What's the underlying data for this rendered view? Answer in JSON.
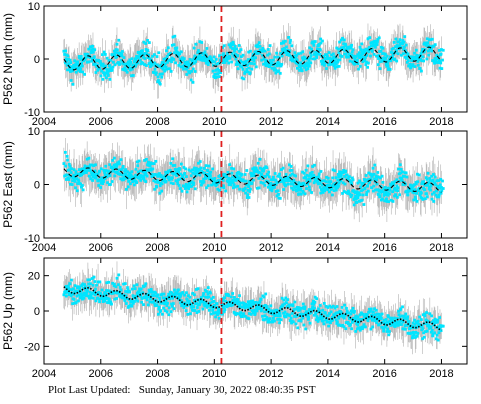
{
  "figure": {
    "footer_label": "Plot Last Updated:",
    "footer_value": "Sunday, January 30, 2022 08:40:35 PST",
    "colors": {
      "data": "#00e5ff",
      "error_bars": "#b0b0b0",
      "model": "#000000",
      "event_line": "#e02020",
      "axes": "#000000"
    }
  },
  "chart_data": [
    {
      "type": "scatter",
      "ylabel": "P562 North (mm)",
      "xlim": [
        2004,
        2018.9
      ],
      "ylim": [
        -10,
        10
      ],
      "y_ticks": [
        -10,
        0,
        10
      ],
      "x_ticks": [
        2004,
        2006,
        2008,
        2010,
        2012,
        2014,
        2016,
        2018
      ],
      "x_tick_labels": [
        "2004",
        "2006",
        "2008",
        "2010",
        "2012",
        "2014",
        "2016",
        "2018"
      ],
      "x_start": 2004.7,
      "x_end": 2018.0,
      "event_line_x": 2010.25,
      "series": [
        {
          "role": "observed",
          "x_start": 2004.7,
          "x_end": 2018.0,
          "trend_start": -0.8,
          "trend_end": 1.0,
          "seasonal_amplitude": 1.3,
          "scatter_sd": 1.6,
          "error_bar_half": 2.6
        },
        {
          "role": "model",
          "style": "dashed",
          "x_start": 2004.7,
          "x_end": 2018.0,
          "trend_start": -0.8,
          "trend_end": 1.0,
          "seasonal_amplitude": 1.3
        }
      ]
    },
    {
      "type": "scatter",
      "ylabel": "P562 East (mm)",
      "xlim": [
        2004,
        2018.9
      ],
      "ylim": [
        -10,
        10
      ],
      "y_ticks": [
        -10,
        0,
        10
      ],
      "x_ticks": [
        2004,
        2006,
        2008,
        2010,
        2012,
        2014,
        2016,
        2018
      ],
      "x_tick_labels": [
        "2004",
        "2006",
        "2008",
        "2010",
        "2012",
        "2014",
        "2016",
        "2018"
      ],
      "x_start": 2004.7,
      "x_end": 2018.0,
      "event_line_x": 2010.25,
      "series": [
        {
          "role": "observed",
          "x_start": 2004.7,
          "x_end": 2018.0,
          "trend_start": 2.4,
          "trend_end": -0.6,
          "seasonal_amplitude": 0.9,
          "scatter_sd": 1.7,
          "error_bar_half": 3.0
        },
        {
          "role": "model",
          "style": "dashed",
          "x_start": 2004.7,
          "x_end": 2018.0,
          "trend_start": 2.4,
          "trend_end": -0.6,
          "seasonal_amplitude": 0.9
        }
      ]
    },
    {
      "type": "scatter",
      "ylabel": "P562 Up (mm)",
      "xlim": [
        2004,
        2018.9
      ],
      "ylim": [
        -30,
        30
      ],
      "y_ticks": [
        -20,
        0,
        20
      ],
      "x_ticks": [
        2004,
        2006,
        2008,
        2010,
        2012,
        2014,
        2016,
        2018
      ],
      "x_tick_labels": [
        "2004",
        "2006",
        "2008",
        "2010",
        "2012",
        "2014",
        "2016",
        "2018"
      ],
      "x_start": 2004.7,
      "x_end": 2018.0,
      "event_line_x": 2010.25,
      "series": [
        {
          "role": "observed",
          "x_start": 2004.7,
          "x_end": 2018.0,
          "trend_start": 12.5,
          "trend_end": -9.0,
          "seasonal_amplitude": 2.0,
          "scatter_sd": 4.5,
          "error_bar_half": 8.0
        },
        {
          "role": "model",
          "style": "dotted",
          "x_start": 2004.7,
          "x_end": 2018.0,
          "trend_start": 12.5,
          "trend_end": -9.0,
          "seasonal_amplitude": 2.0
        }
      ]
    }
  ]
}
